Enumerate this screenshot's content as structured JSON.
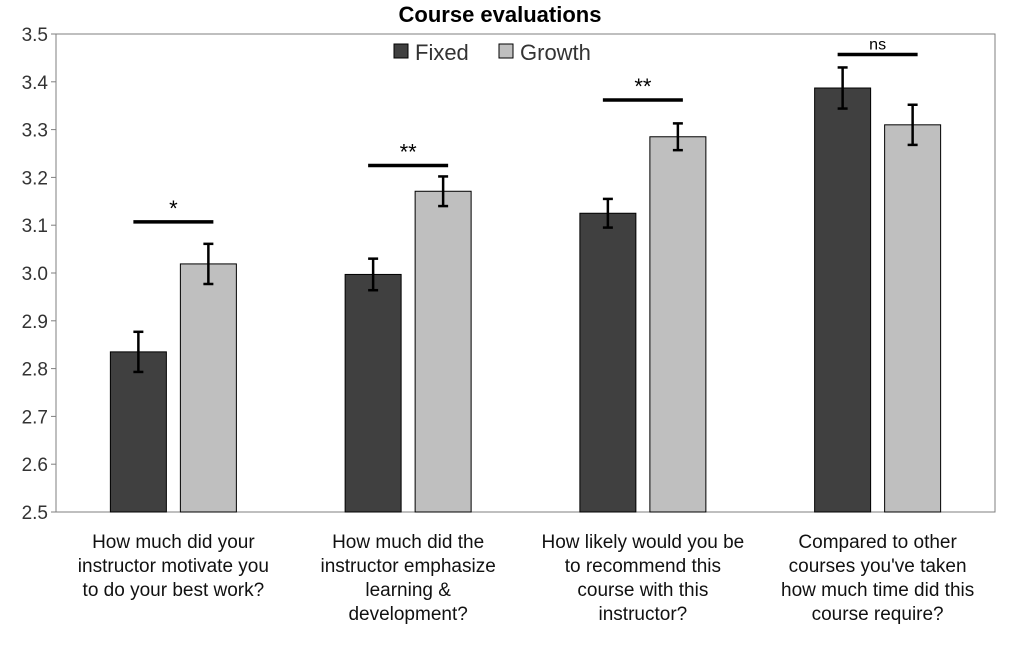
{
  "chart_data": {
    "type": "bar",
    "title": "Course evaluations",
    "xlabel": "",
    "ylabel": "",
    "ylim": [
      2.5,
      3.5
    ],
    "yticks": [
      "2.5",
      "2.6",
      "2.7",
      "2.8",
      "2.9",
      "3.0",
      "3.1",
      "3.2",
      "3.3",
      "3.4",
      "3.5"
    ],
    "grid": false,
    "legend_position": "top-center",
    "categories": [
      [
        "How much did your",
        "instructor motivate you",
        "to do your best work?"
      ],
      [
        "How much did the",
        "instructor emphasize",
        "learning &",
        "development?"
      ],
      [
        "How likely would you be",
        "to recommend this",
        "course with this",
        "instructor?"
      ],
      [
        "Compared to other",
        "courses you've taken",
        "how much time did this",
        "course require?"
      ]
    ],
    "series": [
      {
        "name": "Fixed",
        "color": "#404040",
        "values": [
          2.835,
          2.997,
          3.125,
          3.387
        ],
        "errors": [
          0.042,
          0.033,
          0.03,
          0.043
        ]
      },
      {
        "name": "Growth",
        "color": "#bfbfbf",
        "values": [
          3.019,
          3.171,
          3.285,
          3.31
        ],
        "errors": [
          0.042,
          0.031,
          0.028,
          0.042
        ]
      }
    ],
    "significance": [
      {
        "label": "*",
        "y": 3.107
      },
      {
        "label": "**",
        "y": 3.225
      },
      {
        "label": "**",
        "y": 3.362
      },
      {
        "label": "ns",
        "y": 3.457
      }
    ]
  }
}
